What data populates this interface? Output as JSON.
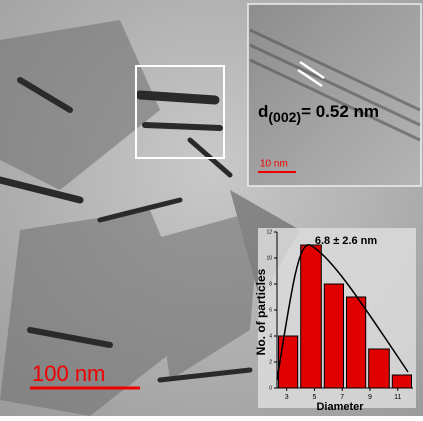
{
  "image": {
    "scale_bar": "100 nm"
  },
  "inset": {
    "d_symbol": "d",
    "d_index": "(002)",
    "d_value": "= 0.52 nm",
    "scale_bar": "10 nm"
  },
  "chart_data": {
    "type": "histogram",
    "title": "6.8 ± 2.6 nm",
    "xlabel": "Diameter",
    "ylabel": "No. of particles",
    "bins": [
      2.3,
      3.9,
      5.6,
      7.2,
      8.8,
      10.5,
      12.1
    ],
    "values": [
      4,
      11,
      8,
      7,
      3,
      1
    ],
    "color": "#e00000",
    "xlim": [
      2.3,
      12.1
    ],
    "xticks": [
      3,
      5,
      7,
      9,
      11
    ],
    "ylim": [
      0,
      12
    ],
    "yticks": [
      0,
      2,
      4,
      6,
      8,
      10,
      12
    ]
  }
}
